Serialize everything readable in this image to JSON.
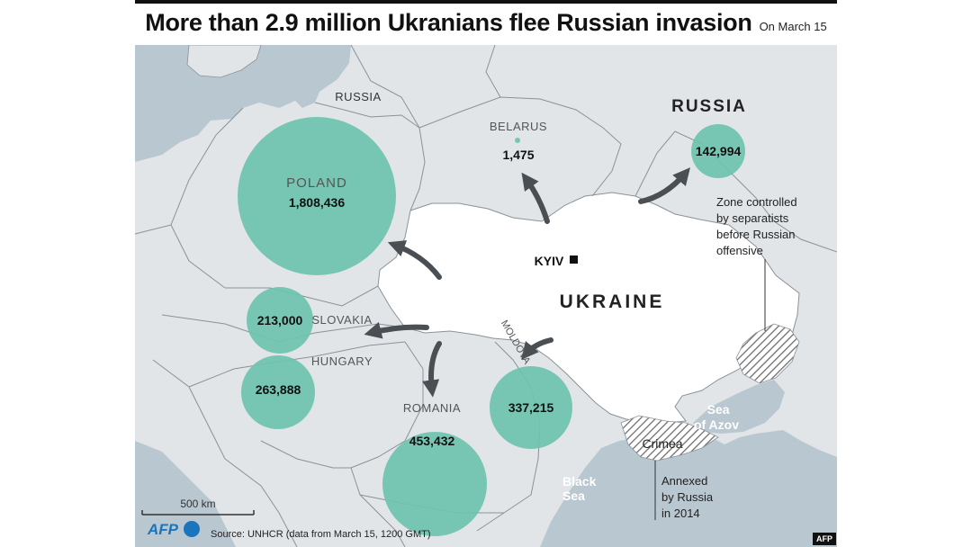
{
  "header": {
    "title": "More than 2.9 million Ukranians flee Russian invasion",
    "date": "On March 15"
  },
  "map": {
    "countries": {
      "russia_north": "RUSSIA",
      "russia_east": "RUSSIA",
      "belarus": "BELARUS",
      "poland": "POLAND",
      "slovakia": "SLOVAKIA",
      "hungary": "HUNGARY",
      "romania": "ROMANIA",
      "moldova": "MOLDOVA",
      "ukraine": "UKRAINE"
    },
    "capital": "KYIV",
    "places": {
      "crimea": "Crimea",
      "sea_of_azov": [
        "Sea",
        "of Azov"
      ],
      "black_sea": [
        "Black",
        "Sea"
      ]
    },
    "refugees": {
      "poland": "1,808,436",
      "belarus": "1,475",
      "russia": "142,994",
      "slovakia": "213,000",
      "hungary": "263,888",
      "romania": "453,432",
      "moldova": "337,215"
    },
    "annotations": {
      "separatist_zone": [
        "Zone controlled",
        "by separatists",
        "before Russian",
        "offensive"
      ],
      "annexed": [
        "Annexed",
        "by Russia",
        "in 2014"
      ]
    },
    "scale_label": "500 km"
  },
  "footer": {
    "logo": "AFP",
    "source": "Source: UNHCR (data from March 15, 1200 GMT)",
    "badge": "AFP"
  },
  "colors": {
    "bubble": "#6cc3ae",
    "ukraine": "#ffffff",
    "land": "#e1e5e8",
    "sea": "#b9c7d1",
    "borders": "#8a9299",
    "logo_blue": "#1b75bc"
  }
}
